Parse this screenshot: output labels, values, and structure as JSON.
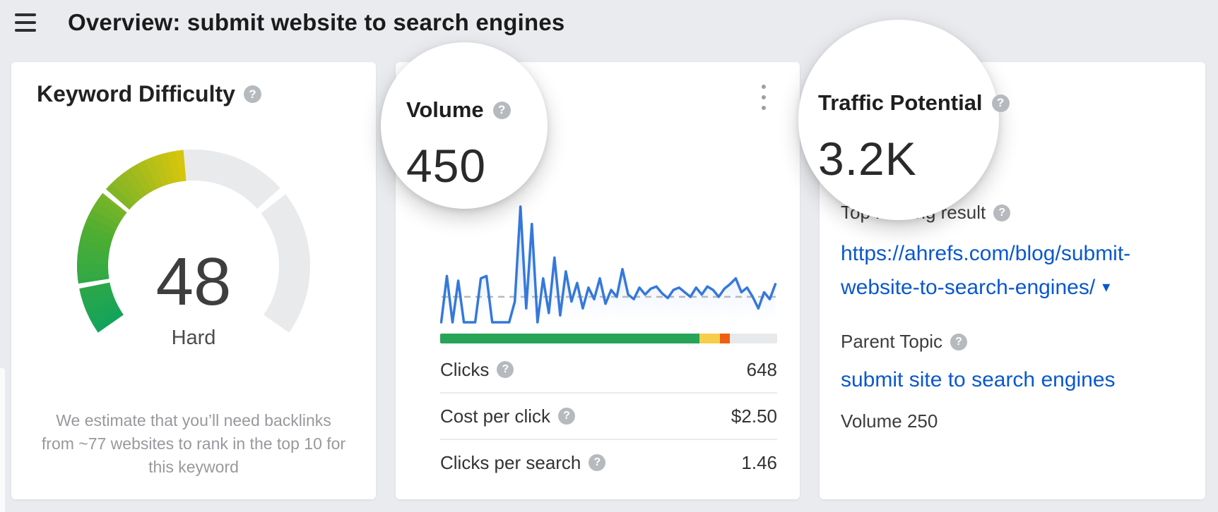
{
  "header": {
    "title": "Overview: submit website to search engines"
  },
  "icons": {
    "help_glyph": "?",
    "caret_down_glyph": "▾"
  },
  "colors": {
    "page_bg": "#e9ebee",
    "card_bg": "#ffffff",
    "link_blue": "#0a58ce",
    "chart_blue": "#3578dc",
    "bar_green": "#27a457",
    "bar_yellow": "#f6ce4b",
    "bar_orange": "#ee5f11",
    "bar_gray": "#e7e9ea",
    "gauge_track_gray": "#e9eaec",
    "help_icon_gray": "#b6babe"
  },
  "cards": {
    "keyword_difficulty": {
      "title": "Keyword Difficulty",
      "score": "48",
      "score_label": "Hard",
      "note": "We estimate that you’ll need backlinks from ~77 websites to rank in the top 10 for this keyword"
    },
    "volume": {
      "title": "Volume",
      "value": "450",
      "metrics": [
        {
          "label": "Clicks",
          "value": "648"
        },
        {
          "label": "Cost per click",
          "value": "$2.50"
        },
        {
          "label": "Clicks per search",
          "value": "1.46"
        }
      ]
    },
    "traffic_potential": {
      "title": "Traffic Potential",
      "value": "3.2K",
      "top_ranking_result_label": "Top ranking result",
      "top_ranking_result_url_line1": "https://ahrefs.com/blog/submit-",
      "top_ranking_result_url_line2": "website-to-search-engines/",
      "parent_topic_label": "Parent Topic",
      "parent_topic": "submit site to search engines",
      "parent_topic_volume": "Volume 250"
    }
  },
  "chart_data": [
    {
      "type": "gauge",
      "title": "Keyword Difficulty",
      "value": 48,
      "max": 100,
      "label": "Hard",
      "segment_boundaries": [
        10,
        30,
        70
      ],
      "arc_start_deg": 215,
      "arc_sweep_deg": 250,
      "color_stops": [
        [
          0,
          "#12a35c"
        ],
        [
          0.45,
          "#4fae31"
        ],
        [
          0.75,
          "#9cb91f"
        ],
        [
          1,
          "#d9c70c"
        ]
      ],
      "track_color": "#e9eaec"
    },
    {
      "type": "line",
      "title": "Volume trend sparkline (no axis labels shown)",
      "values": [
        0,
        40,
        0,
        36,
        0,
        0,
        0,
        38,
        40,
        0,
        0,
        0,
        0,
        18,
        100,
        12,
        85,
        0,
        38,
        8,
        56,
        6,
        44,
        18,
        34,
        12,
        30,
        20,
        38,
        16,
        28,
        22,
        46,
        24,
        20,
        30,
        24,
        29,
        31,
        25,
        21,
        28,
        30,
        26,
        22,
        30,
        24,
        31,
        28,
        22,
        29,
        33,
        38,
        26,
        30,
        22,
        12,
        26,
        20,
        33
      ],
      "average_line": 22,
      "ylim": [
        0,
        100
      ],
      "line_color": "#3578dc",
      "dashed_line_color": "#b8b8b8"
    },
    {
      "type": "stacked-bar",
      "title": "Clicks breakdown bar (unlabeled)",
      "segments": [
        {
          "color": "#27a457",
          "pct": 77
        },
        {
          "color": "#f6ce4b",
          "pct": 6
        },
        {
          "color": "#ee5f11",
          "pct": 3
        },
        {
          "color": "#e7e9ea",
          "pct": 14
        }
      ]
    }
  ]
}
